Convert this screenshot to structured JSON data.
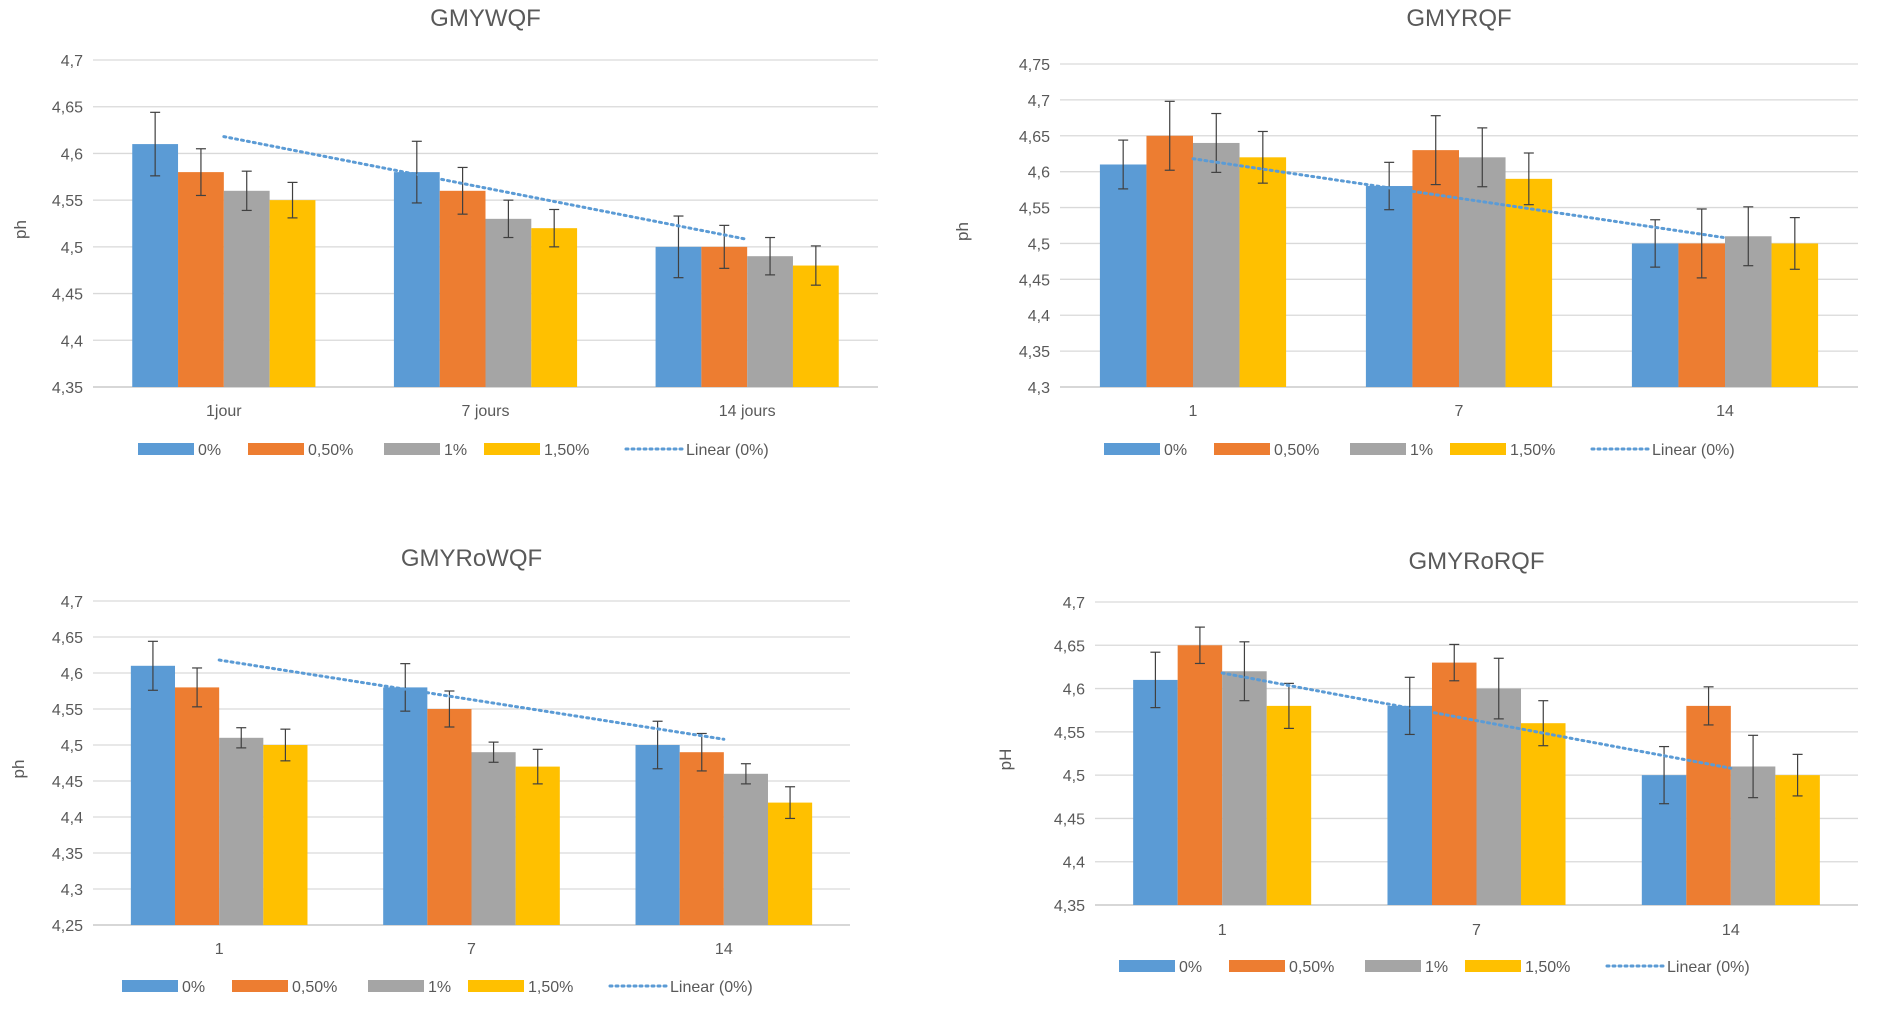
{
  "colors": {
    "s0": "#5B9BD5",
    "s1": "#ED7D31",
    "s2": "#A5A5A5",
    "s3": "#FFC000",
    "trend": "#5B9BD5",
    "grid": "#D9D9D9",
    "axis": "#BFBFBF",
    "text": "#595959",
    "errorbar": "#404040"
  },
  "chart_data": [
    {
      "type": "bar",
      "title": "GMYWQF",
      "ylabel": "ph",
      "xlabel": "",
      "categories": [
        "1jour",
        "7 jours",
        "14 jours"
      ],
      "ylim": [
        4.35,
        4.7
      ],
      "ystep": 0.05,
      "ytick_labels": [
        "4,35",
        "4,4",
        "4,45",
        "4,5",
        "4,55",
        "4,6",
        "4,65",
        "4,7"
      ],
      "series": [
        {
          "name": "0%",
          "values": [
            4.61,
            4.58,
            4.5
          ],
          "errors": [
            0.034,
            0.033,
            0.033
          ]
        },
        {
          "name": "0,50%",
          "values": [
            4.58,
            4.56,
            4.5
          ],
          "errors": [
            0.025,
            0.025,
            0.023
          ]
        },
        {
          "name": "1%",
          "values": [
            4.56,
            4.53,
            4.49
          ],
          "errors": [
            0.021,
            0.02,
            0.02
          ]
        },
        {
          "name": "1,50%",
          "values": [
            4.55,
            4.52,
            4.48
          ],
          "errors": [
            0.019,
            0.02,
            0.021
          ]
        }
      ],
      "trendline": {
        "name": "Linear (0%)",
        "series": 0,
        "start": 4.618,
        "end": 4.508
      },
      "legend": [
        "0%",
        "0,50%",
        "1%",
        "1,50%",
        "Linear (0%)"
      ],
      "legend_position": "bottom"
    },
    {
      "type": "bar",
      "title": "GMYRQF",
      "ylabel": "ph",
      "xlabel": "",
      "categories": [
        "1",
        "7",
        "14"
      ],
      "ylim": [
        4.3,
        4.75
      ],
      "ystep": 0.05,
      "ytick_labels": [
        "4,3",
        "4,35",
        "4,4",
        "4,45",
        "4,5",
        "4,55",
        "4,6",
        "4,65",
        "4,7",
        "4,75"
      ],
      "series": [
        {
          "name": "0%",
          "values": [
            4.61,
            4.58,
            4.5
          ],
          "errors": [
            0.034,
            0.033,
            0.033
          ]
        },
        {
          "name": "0,50%",
          "values": [
            4.65,
            4.63,
            4.5
          ],
          "errors": [
            0.048,
            0.048,
            0.048
          ]
        },
        {
          "name": "1%",
          "values": [
            4.64,
            4.62,
            4.51
          ],
          "errors": [
            0.041,
            0.041,
            0.041
          ]
        },
        {
          "name": "1,50%",
          "values": [
            4.62,
            4.59,
            4.5
          ],
          "errors": [
            0.036,
            0.036,
            0.036
          ]
        }
      ],
      "trendline": {
        "name": "Linear (0%)",
        "series": 0,
        "start": 4.618,
        "end": 4.508
      },
      "legend": [
        "0%",
        "0,50%",
        "1%",
        "1,50%",
        "Linear (0%)"
      ],
      "legend_position": "bottom"
    },
    {
      "type": "bar",
      "title": "GMYRoWQF",
      "ylabel": "ph",
      "xlabel": "",
      "categories": [
        "1",
        "7",
        "14"
      ],
      "ylim": [
        4.25,
        4.7
      ],
      "ystep": 0.05,
      "ytick_labels": [
        "4,25",
        "4,3",
        "4,35",
        "4,4",
        "4,45",
        "4,5",
        "4,55",
        "4,6",
        "4,65",
        "4,7"
      ],
      "series": [
        {
          "name": "0%",
          "values": [
            4.61,
            4.58,
            4.5
          ],
          "errors": [
            0.034,
            0.033,
            0.033
          ]
        },
        {
          "name": "0,50%",
          "values": [
            4.58,
            4.55,
            4.49
          ],
          "errors": [
            0.027,
            0.025,
            0.026
          ]
        },
        {
          "name": "1%",
          "values": [
            4.51,
            4.49,
            4.46
          ],
          "errors": [
            0.014,
            0.014,
            0.014
          ]
        },
        {
          "name": "1,50%",
          "values": [
            4.5,
            4.47,
            4.42
          ],
          "errors": [
            0.022,
            0.024,
            0.022
          ]
        }
      ],
      "trendline": {
        "name": "Linear (0%)",
        "series": 0,
        "start": 4.618,
        "end": 4.508
      },
      "legend": [
        "0%",
        "0,50%",
        "1%",
        "1,50%",
        "Linear (0%)"
      ],
      "legend_position": "bottom"
    },
    {
      "type": "bar",
      "title": "GMYRoRQF",
      "ylabel": "pH",
      "xlabel": "",
      "categories": [
        "1",
        "7",
        "14"
      ],
      "ylim": [
        4.35,
        4.7
      ],
      "ystep": 0.05,
      "ytick_labels": [
        "4,35",
        "4,4",
        "4,45",
        "4,5",
        "4,55",
        "4,6",
        "4,65",
        "4,7"
      ],
      "series": [
        {
          "name": "0%",
          "values": [
            4.61,
            4.58,
            4.5
          ],
          "errors": [
            0.032,
            0.033,
            0.033
          ]
        },
        {
          "name": "0,50%",
          "values": [
            4.65,
            4.63,
            4.58
          ],
          "errors": [
            0.021,
            0.021,
            0.022
          ]
        },
        {
          "name": "1%",
          "values": [
            4.62,
            4.6,
            4.51
          ],
          "errors": [
            0.034,
            0.035,
            0.036
          ]
        },
        {
          "name": "1,50%",
          "values": [
            4.58,
            4.56,
            4.5
          ],
          "errors": [
            0.026,
            0.026,
            0.024
          ]
        }
      ],
      "trendline": {
        "name": "Linear (0%)",
        "series": 0,
        "start": 4.618,
        "end": 4.508
      },
      "legend": [
        "0%",
        "0,50%",
        "1%",
        "1,50%",
        "Linear (0%)"
      ],
      "legend_position": "bottom"
    }
  ]
}
